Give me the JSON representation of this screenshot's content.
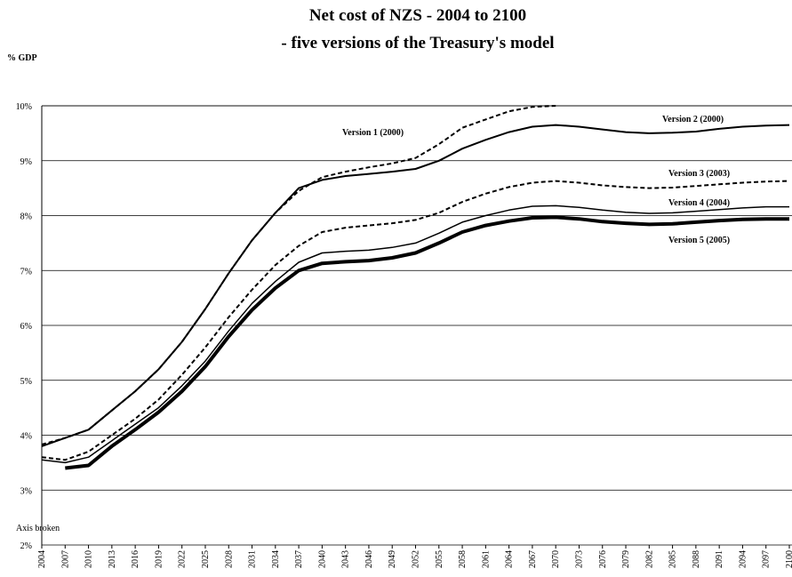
{
  "chart_data": {
    "type": "line",
    "title": "Net cost of NZS - 2004 to 2100",
    "subtitle": "- five versions of the Treasury's model",
    "y_label": "% GDP",
    "annotation": "Axis broken",
    "x": [
      2004,
      2007,
      2010,
      2013,
      2016,
      2019,
      2022,
      2025,
      2028,
      2031,
      2034,
      2037,
      2040,
      2043,
      2046,
      2049,
      2052,
      2055,
      2058,
      2061,
      2064,
      2067,
      2070,
      2073,
      2076,
      2079,
      2082,
      2085,
      2088,
      2091,
      2094,
      2097,
      2100
    ],
    "xlim": [
      2004,
      2100
    ],
    "xticks": [
      2004,
      2007,
      2010,
      2013,
      2016,
      2019,
      2022,
      2025,
      2028,
      2031,
      2034,
      2037,
      2040,
      2043,
      2046,
      2049,
      2052,
      2055,
      2058,
      2061,
      2064,
      2067,
      2070,
      2073,
      2076,
      2079,
      2082,
      2085,
      2088,
      2091,
      2094,
      2097,
      2100
    ],
    "ylim": [
      2,
      10
    ],
    "yticks": [
      {
        "value": 2,
        "label": "2%"
      },
      {
        "value": 3,
        "label": "3%"
      },
      {
        "value": 4,
        "label": "4%"
      },
      {
        "value": 5,
        "label": "5%"
      },
      {
        "value": 6,
        "label": "6%"
      },
      {
        "value": 7,
        "label": "7%"
      },
      {
        "value": 8,
        "label": "8%"
      },
      {
        "value": 9,
        "label": "9%"
      },
      {
        "value": 10,
        "label": "10%"
      }
    ],
    "grid": true,
    "series": [
      {
        "name": "Version 1 (2000)",
        "color": "#000000",
        "dashed": true,
        "width": 2,
        "values": [
          3.83,
          3.95,
          4.1,
          4.45,
          4.8,
          5.2,
          5.7,
          6.3,
          6.95,
          7.55,
          8.05,
          8.45,
          8.7,
          8.8,
          8.88,
          8.95,
          9.05,
          9.3,
          9.6,
          9.75,
          9.9,
          9.98,
          10.0,
          null,
          null,
          null,
          null,
          null,
          null,
          null,
          null,
          null,
          null
        ]
      },
      {
        "name": "Version 2 (2000)",
        "color": "#000000",
        "dashed": false,
        "width": 2,
        "values": [
          3.8,
          3.95,
          4.1,
          4.45,
          4.8,
          5.2,
          5.7,
          6.3,
          6.95,
          7.55,
          8.05,
          8.5,
          8.65,
          8.72,
          8.76,
          8.8,
          8.85,
          9.0,
          9.22,
          9.38,
          9.52,
          9.62,
          9.65,
          9.62,
          9.57,
          9.52,
          9.5,
          9.51,
          9.53,
          9.58,
          9.62,
          9.64,
          9.65
        ]
      },
      {
        "name": "Version 3 (2003)",
        "color": "#000000",
        "dashed": true,
        "width": 2,
        "values": [
          3.6,
          3.55,
          3.7,
          4.0,
          4.3,
          4.65,
          5.1,
          5.6,
          6.15,
          6.65,
          7.1,
          7.45,
          7.7,
          7.78,
          7.82,
          7.86,
          7.92,
          8.05,
          8.25,
          8.4,
          8.52,
          8.6,
          8.63,
          8.6,
          8.55,
          8.52,
          8.5,
          8.51,
          8.54,
          8.57,
          8.6,
          8.62,
          8.63
        ]
      },
      {
        "name": "Version 4 (2004)",
        "color": "#000000",
        "dashed": false,
        "width": 1.5,
        "values": [
          3.55,
          3.5,
          3.6,
          3.9,
          4.2,
          4.5,
          4.9,
          5.35,
          5.9,
          6.4,
          6.8,
          7.15,
          7.32,
          7.35,
          7.37,
          7.42,
          7.5,
          7.68,
          7.88,
          8.0,
          8.1,
          8.17,
          8.18,
          8.15,
          8.1,
          8.06,
          8.04,
          8.05,
          8.08,
          8.11,
          8.14,
          8.16,
          8.16
        ]
      },
      {
        "name": "Version 5 (2005)",
        "color": "#000000",
        "dashed": false,
        "width": 4,
        "values": [
          null,
          3.4,
          3.45,
          3.8,
          4.1,
          4.42,
          4.8,
          5.25,
          5.8,
          6.28,
          6.68,
          7.0,
          7.13,
          7.16,
          7.18,
          7.23,
          7.32,
          7.5,
          7.7,
          7.82,
          7.9,
          7.96,
          7.97,
          7.94,
          7.89,
          7.86,
          7.84,
          7.85,
          7.88,
          7.91,
          7.93,
          7.94,
          7.94
        ]
      }
    ]
  }
}
